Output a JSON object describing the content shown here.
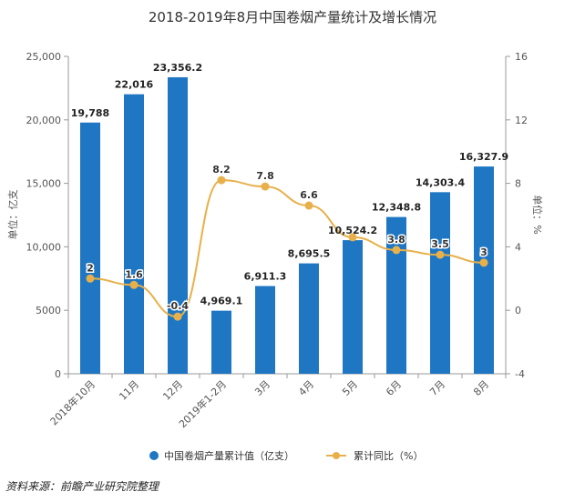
{
  "chart_data": {
    "type": "bar",
    "title": "2018-2019年8月中国卷烟产量统计及增长情况",
    "categories": [
      "2018年10月",
      "11月",
      "12月",
      "2019年1-2月",
      "3月",
      "4月",
      "5月",
      "6月",
      "7月",
      "8月"
    ],
    "series": [
      {
        "name": "中国卷烟产量累计值（亿支）",
        "type": "bar",
        "axis": "left",
        "values": [
          19788,
          22016,
          23356.2,
          4969.1,
          6911.3,
          8695.5,
          10524.2,
          12348.8,
          14303.4,
          16327.9
        ],
        "labels": [
          "19,788",
          "22,016",
          "23,356.2",
          "4,969.1",
          "6,911.3",
          "8,695.5",
          "10,524.2",
          "12,348.8",
          "14,303.4",
          "16,327.9"
        ],
        "color": "#1f77c4"
      },
      {
        "name": "累计同比（%）",
        "type": "line",
        "axis": "right",
        "values": [
          2,
          1.6,
          -0.4,
          8.2,
          7.8,
          6.6,
          4.6,
          3.8,
          3.5,
          3
        ],
        "labels": [
          "2",
          "1.6",
          "-0.4",
          "8.2",
          "7.8",
          "6.6",
          "",
          "3.8",
          "3.5",
          "3"
        ],
        "color": "#e8b04a"
      }
    ],
    "ylabel": "单位：亿支",
    "y2label": "单位：%",
    "ylim": [
      0,
      25000
    ],
    "y2lim": [
      -4,
      16
    ],
    "y_ticks": [
      "0",
      "5000",
      "10,000",
      "15,000",
      "20,000",
      "25,000"
    ],
    "y2_ticks": [
      "-4",
      "0",
      "4",
      "8",
      "12",
      "16"
    ],
    "legend_position": "bottom",
    "grid": false
  },
  "source_text": "资料来源：前瞻产业研究院整理"
}
